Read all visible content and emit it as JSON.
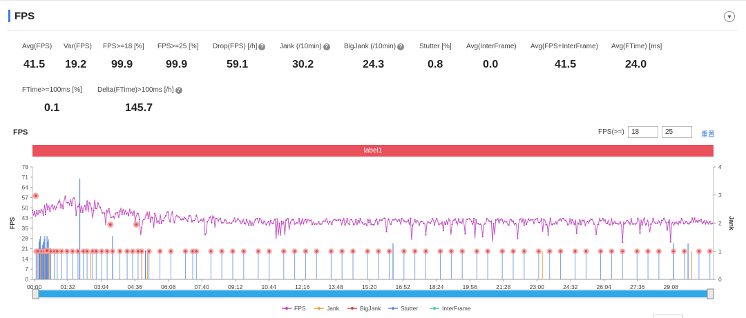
{
  "header": {
    "title": "FPS"
  },
  "metrics": [
    {
      "label": "Avg(FPS)",
      "value": "41.5",
      "help": false
    },
    {
      "label": "Var(FPS)",
      "value": "19.2",
      "help": false
    },
    {
      "label": "FPS>=18 [%]",
      "value": "99.9",
      "help": false
    },
    {
      "label": "FPS>=25 [%]",
      "value": "99.9",
      "help": false
    },
    {
      "label": "Drop(FPS) [/h]",
      "value": "59.1",
      "help": true
    },
    {
      "label": "Jank (/10min)",
      "value": "30.2",
      "help": true
    },
    {
      "label": "BigJank (/10min)",
      "value": "24.3",
      "help": true
    },
    {
      "label": "Stutter [%]",
      "value": "0.8",
      "help": false
    },
    {
      "label": "Avg(InterFrame)",
      "value": "0.0",
      "help": false
    },
    {
      "label": "Avg(FPS+InterFrame)",
      "value": "41.5",
      "help": false
    },
    {
      "label": "Avg(FTime) [ms]",
      "value": "24.0",
      "help": false
    },
    {
      "label": "FTime>=100ms [%]",
      "value": "0.1",
      "help": false
    },
    {
      "label": "Delta(FTime)>100ms [/h]",
      "value": "145.7",
      "help": true
    }
  ],
  "chart_section": {
    "title": "FPS",
    "threshold_label": "FPS(>=)",
    "threshold_1": "18",
    "threshold_2": "25",
    "reset_label": "重置",
    "band_label": "label1"
  },
  "chart_data": {
    "type": "line",
    "xlabel": "",
    "ylabel": "FPS",
    "y2label": "Jank",
    "ylim": [
      0,
      78
    ],
    "y2lim": [
      0,
      4
    ],
    "yticks": [
      "0",
      "7",
      "14",
      "21",
      "28",
      "35",
      "43",
      "50",
      "57",
      "64",
      "71",
      "78"
    ],
    "y2ticks": [
      "0",
      "1",
      "2",
      "3",
      "4"
    ],
    "xticks": [
      "00:00",
      "01:32",
      "03:04",
      "04:36",
      "06:08",
      "07:40",
      "09:12",
      "10:44",
      "12:16",
      "13:48",
      "15:20",
      "16:52",
      "18:24",
      "19:56",
      "21:28",
      "23:00",
      "24:32",
      "26:04",
      "27:36",
      "29:08"
    ],
    "x_range_seconds": [
      0,
      1870
    ],
    "fps_profile": [
      [
        0,
        48
      ],
      [
        20,
        46
      ],
      [
        60,
        52
      ],
      [
        100,
        54
      ],
      [
        140,
        50
      ],
      [
        180,
        53
      ],
      [
        210,
        47
      ],
      [
        260,
        45
      ],
      [
        300,
        44
      ],
      [
        360,
        43
      ],
      [
        420,
        42
      ],
      [
        480,
        42
      ],
      [
        540,
        41
      ],
      [
        600,
        40
      ],
      [
        1870,
        40
      ]
    ],
    "fps_marked_points": [
      [
        9,
        58
      ],
      [
        40,
        20
      ],
      [
        214,
        38
      ],
      [
        285,
        38
      ]
    ],
    "stutter_spikes": [
      [
        20,
        20
      ],
      [
        30,
        25
      ],
      [
        40,
        30
      ],
      [
        50,
        22
      ],
      [
        130,
        70
      ],
      [
        220,
        30
      ],
      [
        310,
        20
      ],
      [
        990,
        25
      ],
      [
        1760,
        25
      ],
      [
        1800,
        25
      ]
    ],
    "jank_markers_seconds": [
      10,
      15,
      25,
      32,
      38,
      42,
      50,
      60,
      68,
      80,
      95,
      110,
      125,
      140,
      150,
      165,
      175,
      190,
      205,
      220,
      240,
      260,
      275,
      290,
      300,
      320,
      350,
      380,
      420,
      440,
      450,
      490,
      520,
      550,
      580,
      620,
      650,
      690,
      720,
      750,
      780,
      820,
      850,
      880,
      920,
      950,
      980,
      1020,
      1050,
      1080,
      1120,
      1150,
      1180,
      1220,
      1250,
      1290,
      1320,
      1350,
      1390,
      1420,
      1450,
      1490,
      1520,
      1560,
      1590,
      1620,
      1660,
      1690,
      1720,
      1760,
      1790,
      1830,
      1860
    ],
    "jank_marker_value": 1,
    "colors": {
      "fps": "#c044c0",
      "jank": "#f39c3c",
      "bigjank": "#d9443d",
      "stutter": "#5b8be0",
      "interframe": "#4cc9a8",
      "marker": "#f29c9c"
    },
    "legend": [
      {
        "name": "FPS",
        "color": "#c044c0"
      },
      {
        "name": "Jank",
        "color": "#f39c3c"
      },
      {
        "name": "BigJank",
        "color": "#d9443d"
      },
      {
        "name": "Stutter",
        "color": "#5b8be0"
      },
      {
        "name": "InterFrame",
        "color": "#4cc9a8"
      }
    ],
    "legend_position": "bottom",
    "slider_color": "#2ea8ea"
  },
  "icons": {
    "collapse": "chevron-down-circle-icon",
    "help": "question-circle-icon"
  }
}
